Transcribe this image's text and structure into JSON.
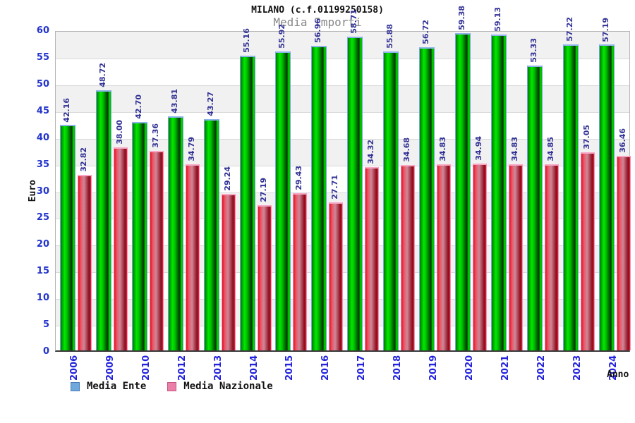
{
  "header": {
    "title": "MILANO (c.f.01199250158)",
    "subtitle": "Media Importi"
  },
  "axes": {
    "y_title": "Euro",
    "x_title": "Anno"
  },
  "legend": {
    "items": [
      {
        "label": "Media Ente",
        "swatch_fill": "#6fa8dc",
        "swatch_border": "#4a7ab5"
      },
      {
        "label": "Media Nazionale",
        "swatch_fill": "#ea7fa8",
        "swatch_border": "#c5567f"
      }
    ]
  },
  "colors": {
    "green_bar": "#00cc00",
    "red_bar": "#dd2233",
    "green_bar_cap": "#8db4ea",
    "red_bar_cap": "#f8a8c6",
    "tick_label": "#2233cc",
    "year_label": "#2222dd",
    "value_label": "#323296",
    "band_gray": "#f1f1f1",
    "subtitle_gray": "#878787"
  },
  "chart_data": {
    "type": "bar",
    "title": "MILANO (c.f.01199250158)",
    "subtitle": "Media Importi",
    "xlabel": "Anno",
    "ylabel": "Euro",
    "ylim": [
      0,
      60
    ],
    "yticks": [
      0,
      5,
      10,
      15,
      20,
      25,
      30,
      35,
      40,
      45,
      50,
      55,
      60
    ],
    "grid": "horizontal-bands-alternating",
    "legend_position": "bottom-left",
    "value_labels": "rotated-90-above-bars",
    "categories": [
      "2006",
      "2009",
      "2010",
      "2012",
      "2013",
      "2014",
      "2015",
      "2016",
      "2017",
      "2018",
      "2019",
      "2020",
      "2021",
      "2022",
      "2023",
      "2024"
    ],
    "series": [
      {
        "name": "Media Ente",
        "values": [
          42.16,
          48.72,
          42.7,
          43.81,
          43.27,
          55.16,
          55.92,
          56.96,
          58.71,
          55.88,
          56.72,
          59.38,
          59.13,
          53.33,
          57.22,
          57.19
        ]
      },
      {
        "name": "Media Nazionale",
        "values": [
          32.82,
          38.0,
          37.36,
          34.79,
          29.24,
          27.19,
          29.43,
          27.71,
          34.32,
          34.68,
          34.83,
          34.94,
          34.83,
          34.85,
          37.05,
          36.46
        ]
      }
    ]
  }
}
